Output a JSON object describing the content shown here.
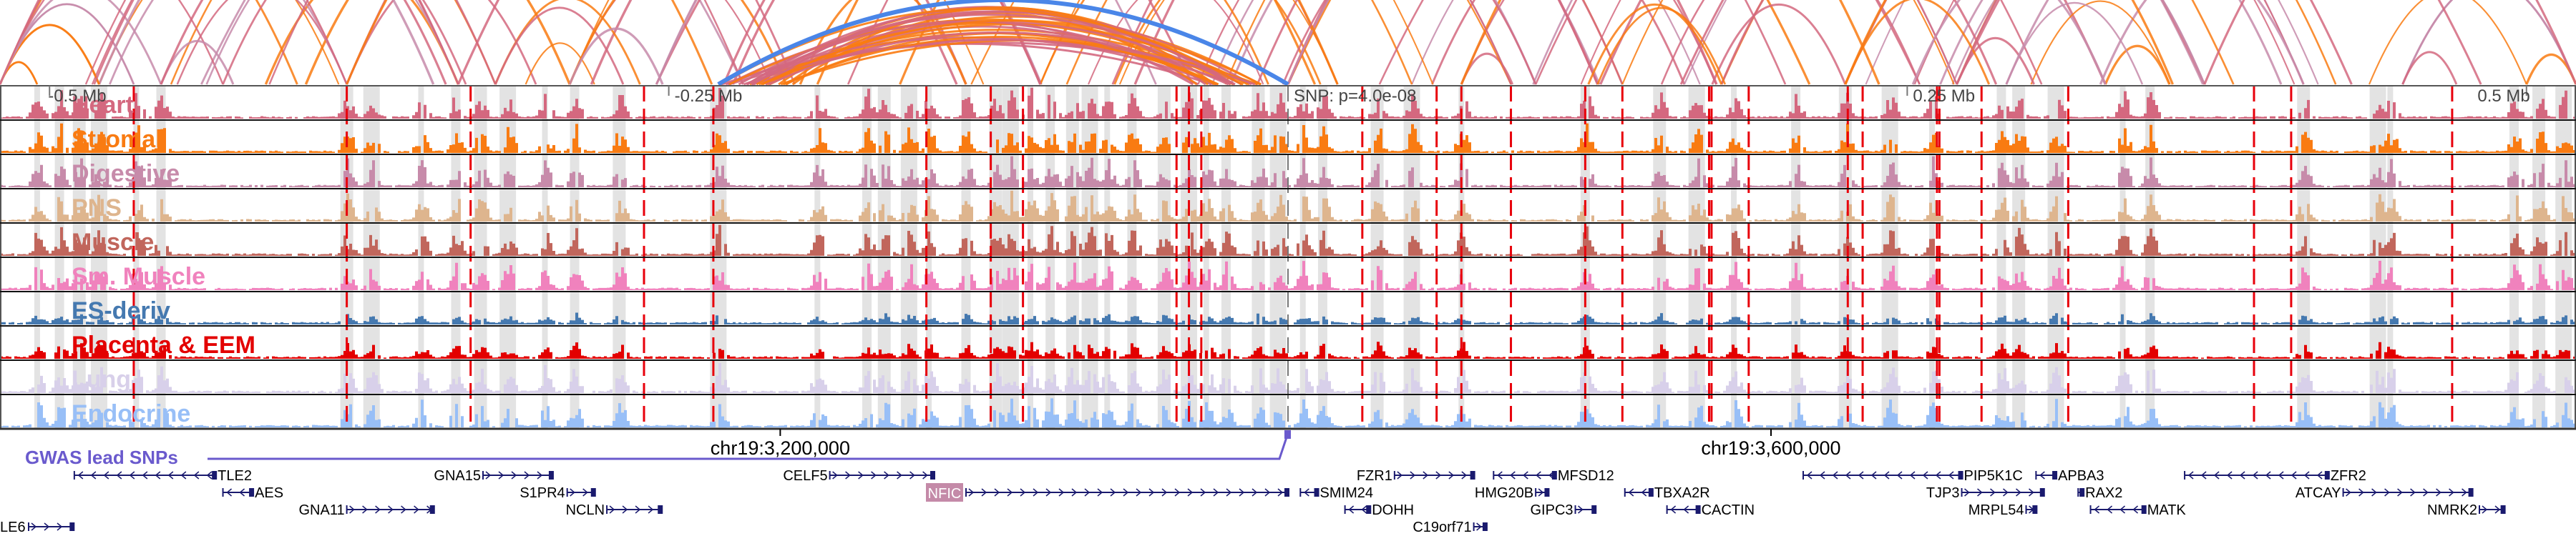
{
  "chart_data": {
    "type": "genome-browser",
    "title": "",
    "region": {
      "chrom": "chr19",
      "xrange_mb": [
        -0.52,
        0.52
      ]
    },
    "axis_ticks": [
      {
        "pos_mb": -0.5,
        "label": "-0.5 Mb"
      },
      {
        "pos_mb": -0.25,
        "label": "-0.25 Mb"
      },
      {
        "pos_mb": 0.25,
        "label": "0.25 Mb"
      },
      {
        "pos_mb": 0.5,
        "label": "0.5 Mb"
      }
    ],
    "snp": {
      "pos_mb": 0.0,
      "label": "SNP: p=4.0e-08"
    },
    "coordinate_labels": [
      {
        "pos_mb": -0.205,
        "label": "chr19:3,200,000"
      },
      {
        "pos_mb": 0.195,
        "label": "chr19:3,600,000"
      }
    ],
    "tracks": [
      {
        "name": "Heart",
        "color": "#d4687f"
      },
      {
        "name": "Stromal",
        "color": "#f97b12"
      },
      {
        "name": "Digestive",
        "color": "#c78baa"
      },
      {
        "name": "PNS",
        "color": "#deb58e"
      },
      {
        "name": "Muscle",
        "color": "#c1665c"
      },
      {
        "name": "Sm. Muscle",
        "color": "#f082bd"
      },
      {
        "name": "ES-deriv",
        "color": "#4579b0"
      },
      {
        "name": "Placenta & EEM",
        "color": "#e30000"
      },
      {
        "name": "Lung",
        "color": "#d8d0ea"
      },
      {
        "name": "Endocrine",
        "color": "#98bff7"
      }
    ],
    "peak_regions_mb": [
      -0.505,
      -0.496,
      -0.488,
      -0.48,
      -0.465,
      -0.455,
      -0.38,
      -0.37,
      -0.35,
      -0.336,
      -0.326,
      -0.315,
      -0.3,
      -0.288,
      -0.27,
      -0.23,
      -0.19,
      -0.17,
      -0.163,
      -0.153,
      -0.145,
      -0.13,
      -0.118,
      -0.112,
      -0.104,
      -0.096,
      -0.087,
      -0.08,
      -0.073,
      -0.063,
      -0.05,
      -0.04,
      -0.033,
      -0.025,
      -0.012,
      -0.004,
      0.006,
      0.014,
      0.036,
      0.05,
      0.07,
      0.12,
      0.15,
      0.165,
      0.18,
      0.205,
      0.225,
      0.243,
      0.26,
      0.288,
      0.295,
      0.31,
      0.337,
      0.348,
      0.41,
      0.44,
      0.445,
      0.495,
      0.505,
      0.515
    ],
    "eqtl_lines_mb": [
      -0.466,
      -0.38,
      -0.33,
      -0.26,
      -0.232,
      -0.146,
      -0.12,
      -0.107,
      -0.045,
      -0.04,
      -0.035,
      0.03,
      0.06,
      0.07,
      0.09,
      0.12,
      0.135,
      0.17,
      0.171,
      0.186,
      0.226,
      0.232,
      0.262,
      0.263,
      0.28,
      0.315,
      0.39,
      0.405,
      0.47
    ],
    "gwas": {
      "label": "GWAS lead SNPs",
      "color": "#6a5acd"
    },
    "genes": [
      {
        "name": "TLE2",
        "start_mb": -0.49,
        "end_mb": -0.433,
        "strand": "-",
        "row": 0,
        "label_side": "right"
      },
      {
        "name": "AES",
        "start_mb": -0.43,
        "end_mb": -0.418,
        "strand": "-",
        "row": 1,
        "label_side": "right"
      },
      {
        "name": "GNA11",
        "start_mb": -0.38,
        "end_mb": -0.345,
        "strand": "+",
        "row": 2,
        "label_side": "left"
      },
      {
        "name": "GNA15",
        "start_mb": -0.325,
        "end_mb": -0.297,
        "strand": "+",
        "row": 0,
        "label_side": "left"
      },
      {
        "name": "S1PR4",
        "start_mb": -0.291,
        "end_mb": -0.28,
        "strand": "+",
        "row": 1,
        "label_side": "left"
      },
      {
        "name": "NCLN",
        "start_mb": -0.275,
        "end_mb": -0.253,
        "strand": "+",
        "row": 2,
        "label_side": "left"
      },
      {
        "name": "CELF5",
        "start_mb": -0.185,
        "end_mb": -0.143,
        "strand": "+",
        "row": 0,
        "label_side": "left"
      },
      {
        "name": "NFIC",
        "start_mb": -0.13,
        "end_mb": 0.0,
        "strand": "+",
        "row": 1,
        "label_side": "left",
        "highlight": "#c48aa8"
      },
      {
        "name": "SMIM24",
        "start_mb": 0.005,
        "end_mb": 0.012,
        "strand": "-",
        "row": 1,
        "label_side": "right"
      },
      {
        "name": "FZR1",
        "start_mb": 0.043,
        "end_mb": 0.075,
        "strand": "+",
        "row": 0,
        "label_side": "left"
      },
      {
        "name": "DOHH",
        "start_mb": 0.023,
        "end_mb": 0.033,
        "strand": "-",
        "row": 2,
        "label_side": "right"
      },
      {
        "name": "C19orf71",
        "start_mb": 0.075,
        "end_mb": 0.08,
        "strand": "+",
        "row": 3,
        "label_side": "left"
      },
      {
        "name": "MFSD12",
        "start_mb": 0.083,
        "end_mb": 0.108,
        "strand": "-",
        "row": 0,
        "label_side": "right"
      },
      {
        "name": "HMG20B",
        "start_mb": 0.1,
        "end_mb": 0.105,
        "strand": "+",
        "row": 1,
        "label_side": "left"
      },
      {
        "name": "GIPC3",
        "start_mb": 0.116,
        "end_mb": 0.124,
        "strand": "+",
        "row": 2,
        "label_side": "left"
      },
      {
        "name": "TBXA2R",
        "start_mb": 0.136,
        "end_mb": 0.147,
        "strand": "-",
        "row": 1,
        "label_side": "right"
      },
      {
        "name": "CACTIN",
        "start_mb": 0.153,
        "end_mb": 0.166,
        "strand": "-",
        "row": 2,
        "label_side": "right"
      },
      {
        "name": "PIP5K1C",
        "start_mb": 0.208,
        "end_mb": 0.272,
        "strand": "-",
        "row": 0,
        "label_side": "right"
      },
      {
        "name": "TJP3",
        "start_mb": 0.272,
        "end_mb": 0.305,
        "strand": "+",
        "row": 1,
        "label_side": "left"
      },
      {
        "name": "MRPL54",
        "start_mb": 0.298,
        "end_mb": 0.302,
        "strand": "+",
        "row": 2,
        "label_side": "left"
      },
      {
        "name": "APBA3",
        "start_mb": 0.302,
        "end_mb": 0.31,
        "strand": "-",
        "row": 0,
        "label_side": "right"
      },
      {
        "name": "RAX2",
        "start_mb": 0.319,
        "end_mb": 0.321,
        "strand": "-",
        "row": 1,
        "label_side": "right"
      },
      {
        "name": "MATK",
        "start_mb": 0.324,
        "end_mb": 0.346,
        "strand": "-",
        "row": 2,
        "label_side": "right"
      },
      {
        "name": "ZFR2",
        "start_mb": 0.362,
        "end_mb": 0.42,
        "strand": "-",
        "row": 0,
        "label_side": "right"
      },
      {
        "name": "ATCAY",
        "start_mb": 0.426,
        "end_mb": 0.478,
        "strand": "+",
        "row": 1,
        "label_side": "left"
      },
      {
        "name": "NMRK2",
        "start_mb": 0.481,
        "end_mb": 0.491,
        "strand": "+",
        "row": 2,
        "label_side": "left"
      },
      {
        "name": "LE6",
        "start_mb": -0.52,
        "end_mb": -0.502,
        "strand": "+",
        "row": 3,
        "label_side": "left",
        "label_clipped": true
      }
    ],
    "arc_colors": {
      "pink": "#d4687f",
      "orange": "#f97b12",
      "mauve": "#c78baa",
      "blue": "#4a86e8"
    }
  }
}
